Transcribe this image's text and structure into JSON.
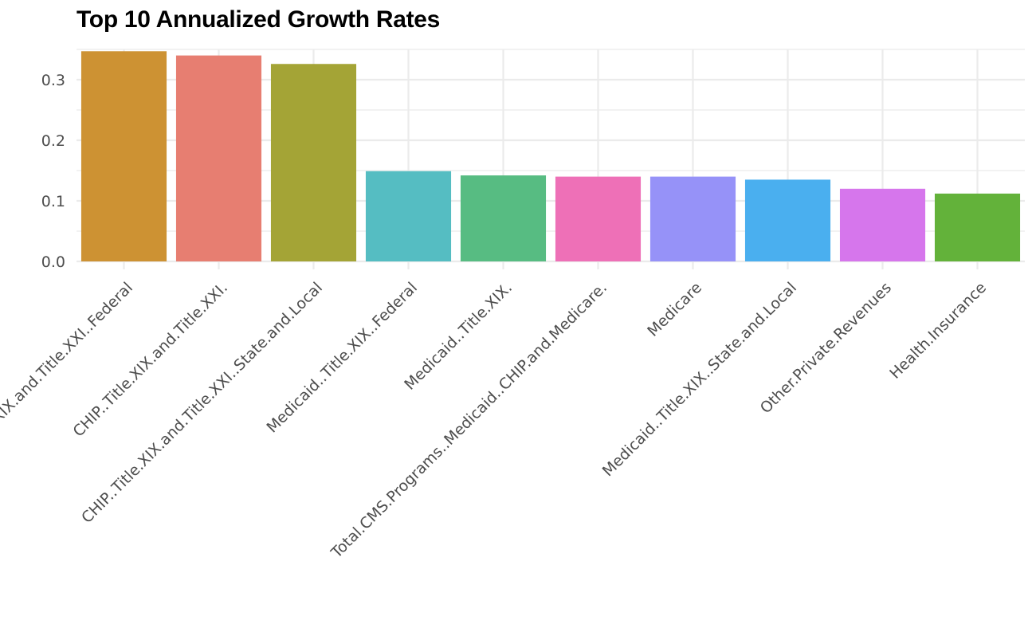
{
  "chart_data": {
    "type": "bar",
    "title": "Top 10 Annualized Growth Rates",
    "xlabel": "",
    "ylabel": "",
    "ylim": [
      0,
      0.35
    ],
    "yticks": [
      "0.0",
      "0.1",
      "0.2",
      "0.3"
    ],
    "ytick_values": [
      0,
      0.1,
      0.2,
      0.3
    ],
    "grid": true,
    "legend": "none",
    "categories": [
      "CHIP..Title.XIX.and.Title.XXI..Federal",
      "CHIP..Title.XIX.and.Title.XXI.",
      "CHIP..Title.XIX.and.Title.XXI..State.and.Local",
      "Medicaid..Title.XIX..Federal",
      "Medicaid..Title.XIX.",
      "Total.CMS.Programs..Medicaid..CHIP.and.Medicare.",
      "Medicare",
      "Medicaid..Title.XIX..State.and.Local",
      "Other.Private.Revenues",
      "Health.Insurance"
    ],
    "values": [
      0.347,
      0.34,
      0.326,
      0.149,
      0.142,
      0.14,
      0.14,
      0.135,
      0.12,
      0.112
    ],
    "colors": [
      "#CD9233",
      "#E77E71",
      "#A4A436",
      "#55BDC2",
      "#57BC82",
      "#EE70B7",
      "#9692F8",
      "#4AAFEF",
      "#D676EC",
      "#63B23A"
    ]
  }
}
